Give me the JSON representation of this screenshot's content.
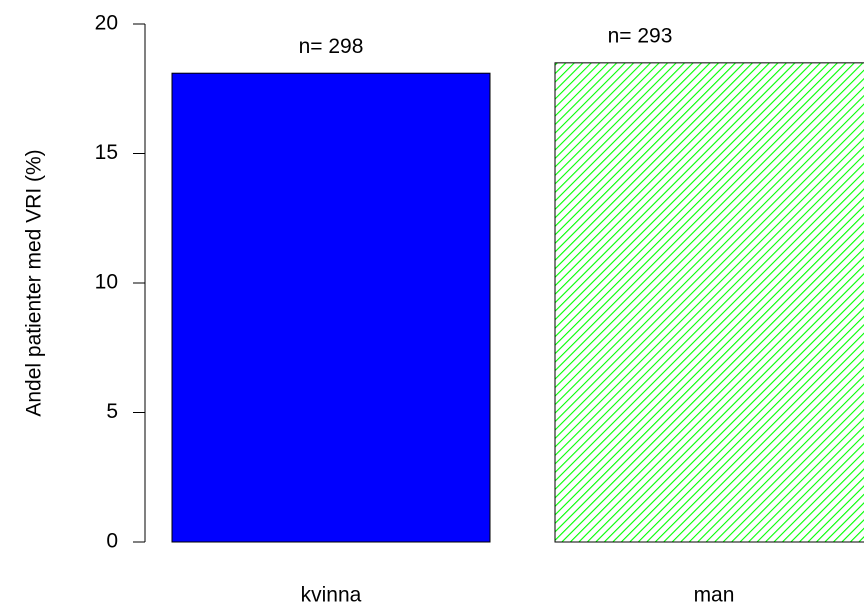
{
  "chart_data": {
    "type": "bar",
    "ylabel": "Andel patienter med VRI (%)",
    "categories": [
      "kvinna",
      "man"
    ],
    "values": [
      18.1,
      18.5
    ],
    "annotations": [
      "n= 298",
      "n= 293"
    ],
    "colors": [
      "#0000ff",
      "#00ff00"
    ],
    "fills": [
      "solid",
      "hatch"
    ],
    "ylim": [
      0,
      20
    ],
    "yticks": [
      0,
      5,
      10,
      15,
      20
    ]
  }
}
